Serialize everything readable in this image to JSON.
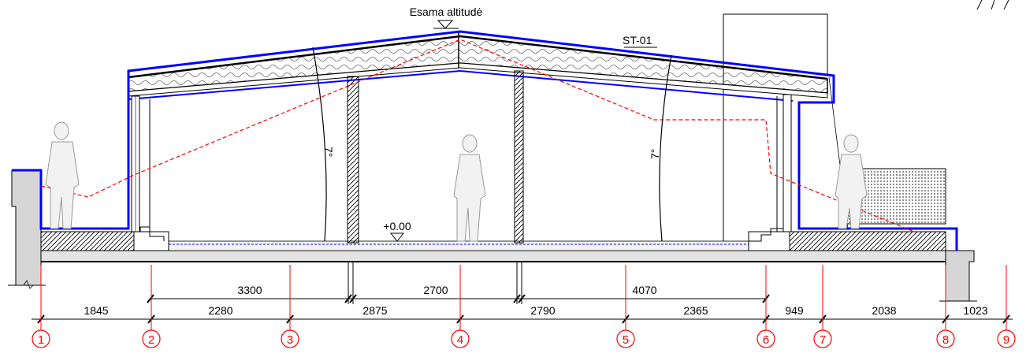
{
  "labels": {
    "existing_altitude": "Esama altitudė",
    "zero_level": "+0.00",
    "section_tag": "ST-01",
    "slope_left": "7°",
    "slope_right": "7°"
  },
  "dimensions_top": [
    "3300",
    "2700",
    "4070"
  ],
  "dimensions_bottom": [
    "1845",
    "2280",
    "2875",
    "2790",
    "2365",
    "949",
    "2038",
    "1023"
  ],
  "axes": [
    "1",
    "2",
    "3",
    "4",
    "5",
    "6",
    "7",
    "8",
    "9"
  ],
  "colors": {
    "outline": "#0000ff",
    "profile_line": "#ff0000",
    "axis_marker": "#ff0000",
    "structure": "#000000",
    "concrete": "#d0d0d0"
  }
}
